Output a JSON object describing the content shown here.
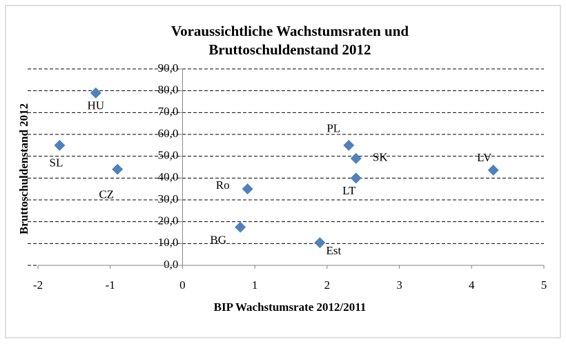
{
  "chart_data": {
    "type": "scatter",
    "title": [
      "Voraussichtliche Wachstumsraten und",
      "Bruttoschuldenstand 2012"
    ],
    "x_label": "BIP Wachstumsrate 2012/2011",
    "y_label": "Bruttoschuldenstand 2012",
    "labels": [
      "HU",
      "SL",
      "CZ",
      "Ro",
      "BG",
      "Est",
      "PL",
      "SK",
      "LT",
      "LV"
    ],
    "x": [
      -1.2,
      -1.7,
      -0.9,
      0.9,
      0.8,
      1.9,
      2.3,
      2.4,
      2.4,
      4.3
    ],
    "values": [
      79,
      55,
      44,
      35,
      17.5,
      10.4,
      55,
      49,
      40,
      43.6
    ],
    "color": "#4f81bd",
    "xlim": [
      -2,
      5
    ],
    "xticks": [
      -2,
      -1,
      0,
      1,
      2,
      3,
      4,
      5
    ],
    "ylim": [
      0,
      90
    ],
    "yticks": [
      {
        "value": 0,
        "label": "0,0"
      },
      {
        "value": 10,
        "label": "10,0"
      },
      {
        "value": 20,
        "label": "20,0"
      },
      {
        "value": 30,
        "label": "30,0"
      },
      {
        "value": 40,
        "label": "40,0"
      },
      {
        "value": 50,
        "label": "50,0"
      },
      {
        "value": 60,
        "label": "60,0"
      },
      {
        "value": 70,
        "label": "70,0"
      },
      {
        "value": 80,
        "label": "80,0"
      },
      {
        "value": 90,
        "label": "90,0"
      }
    ],
    "grid": true
  }
}
